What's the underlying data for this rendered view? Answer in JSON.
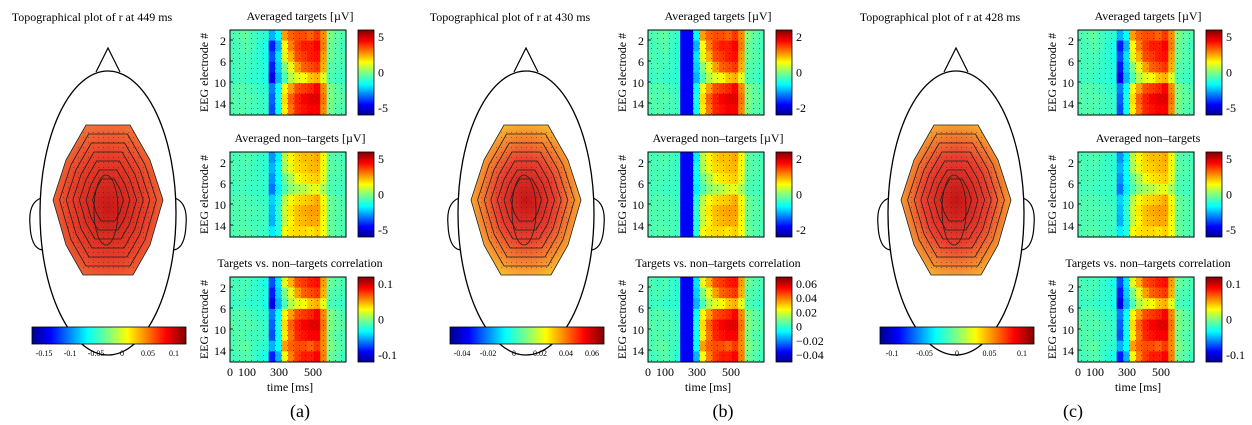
{
  "panels": [
    {
      "topo_title": "Topographical plot of r at 449 ms",
      "head_colorbar_ticks": [
        "-0.15",
        "-0.1",
        "-0.05",
        "0",
        "0.05",
        "0.1"
      ],
      "panel_label": "(a)",
      "heatmaps": [
        {
          "title": "Averaged targets [µV]",
          "colorbar_ticks": [
            "5",
            "0",
            "-5"
          ],
          "level": 0.55
        },
        {
          "title": "Averaged non–targets [µV]",
          "colorbar_ticks": [
            "5",
            "0",
            "-5"
          ],
          "level": 0.45
        },
        {
          "title": "Targets vs. non–targets correlation",
          "colorbar_ticks": [
            "0.1",
            "0",
            "-0.1"
          ],
          "level": 0.6
        }
      ]
    },
    {
      "topo_title": "Topographical plot of r at 430 ms",
      "head_colorbar_ticks": [
        "-0.04",
        "-0.02",
        "0",
        "0.02",
        "0.04",
        "0.06"
      ],
      "panel_label": "(b)",
      "heatmaps": [
        {
          "title": "Averaged targets [µV]",
          "colorbar_ticks": [
            "2",
            "0",
            "-2"
          ],
          "level": 0.58
        },
        {
          "title": "Averaged non–targets [µV]",
          "colorbar_ticks": [
            "2",
            "0",
            "-2"
          ],
          "level": 0.5
        },
        {
          "title": "Targets vs. non–targets correlation",
          "colorbar_ticks": [
            "0.06",
            "0.04",
            "0.02",
            "0",
            "−0.02",
            "−0.04"
          ],
          "level": 0.6
        }
      ]
    },
    {
      "topo_title": "Topographical plot of r at 428 ms",
      "head_colorbar_ticks": [
        "-0.1",
        "-0.05",
        "0",
        "0.05",
        "0.1"
      ],
      "panel_label": "(c)",
      "heatmaps": [
        {
          "title": "Averaged targets [µV]",
          "colorbar_ticks": [
            "5",
            "0",
            "-5"
          ],
          "level": 0.56
        },
        {
          "title": "Averaged non–targets",
          "colorbar_ticks": [
            "5",
            "0",
            "-5"
          ],
          "level": 0.5
        },
        {
          "title": "Targets vs. non–targets correlation",
          "colorbar_ticks": [
            "0.1",
            "0",
            "-0.1"
          ],
          "level": 0.55
        }
      ]
    }
  ],
  "y_axis_label": "EEG electrode #",
  "y_ticks": [
    "2",
    "6",
    "10",
    "14"
  ],
  "x_axis_label": "time [ms]",
  "x_ticks_a": [
    "0",
    "100",
    "300",
    "500"
  ],
  "x_ticks_b": [
    "0",
    "100",
    "300",
    "500"
  ],
  "x_ticks_c": [
    "0",
    "100",
    "300",
    "500"
  ],
  "chart_data": {
    "type": "heatmap",
    "colormap": "jet",
    "x_range_ms": [
      0,
      700
    ],
    "electrodes": 16,
    "rows": [
      [
        0.45,
        0.46,
        0.47,
        0.44,
        0.43,
        0.42,
        0.3,
        0.38,
        0.72,
        0.78,
        0.8,
        0.8,
        0.78,
        0.82,
        0.74,
        0.5,
        0.47,
        0.45
      ],
      [
        0.44,
        0.45,
        0.46,
        0.44,
        0.42,
        0.4,
        0.15,
        0.3,
        0.62,
        0.75,
        0.82,
        0.85,
        0.85,
        0.88,
        0.75,
        0.48,
        0.46,
        0.44
      ],
      [
        0.45,
        0.44,
        0.45,
        0.43,
        0.42,
        0.4,
        0.2,
        0.35,
        0.6,
        0.7,
        0.8,
        0.82,
        0.85,
        0.86,
        0.72,
        0.48,
        0.46,
        0.45
      ],
      [
        0.44,
        0.45,
        0.44,
        0.43,
        0.42,
        0.41,
        0.15,
        0.33,
        0.5,
        0.6,
        0.72,
        0.78,
        0.8,
        0.82,
        0.7,
        0.46,
        0.45,
        0.44
      ],
      [
        0.43,
        0.44,
        0.43,
        0.42,
        0.42,
        0.4,
        0.1,
        0.3,
        0.45,
        0.55,
        0.6,
        0.62,
        0.68,
        0.7,
        0.6,
        0.45,
        0.44,
        0.43
      ],
      [
        0.45,
        0.46,
        0.45,
        0.44,
        0.43,
        0.42,
        0.25,
        0.38,
        0.62,
        0.72,
        0.8,
        0.82,
        0.84,
        0.88,
        0.74,
        0.5,
        0.47,
        0.45
      ],
      [
        0.46,
        0.45,
        0.46,
        0.45,
        0.44,
        0.43,
        0.22,
        0.4,
        0.66,
        0.78,
        0.85,
        0.88,
        0.9,
        0.9,
        0.76,
        0.5,
        0.47,
        0.46
      ],
      [
        0.45,
        0.46,
        0.45,
        0.44,
        0.44,
        0.43,
        0.2,
        0.38,
        0.64,
        0.76,
        0.84,
        0.86,
        0.88,
        0.88,
        0.74,
        0.49,
        0.46,
        0.45
      ]
    ]
  }
}
